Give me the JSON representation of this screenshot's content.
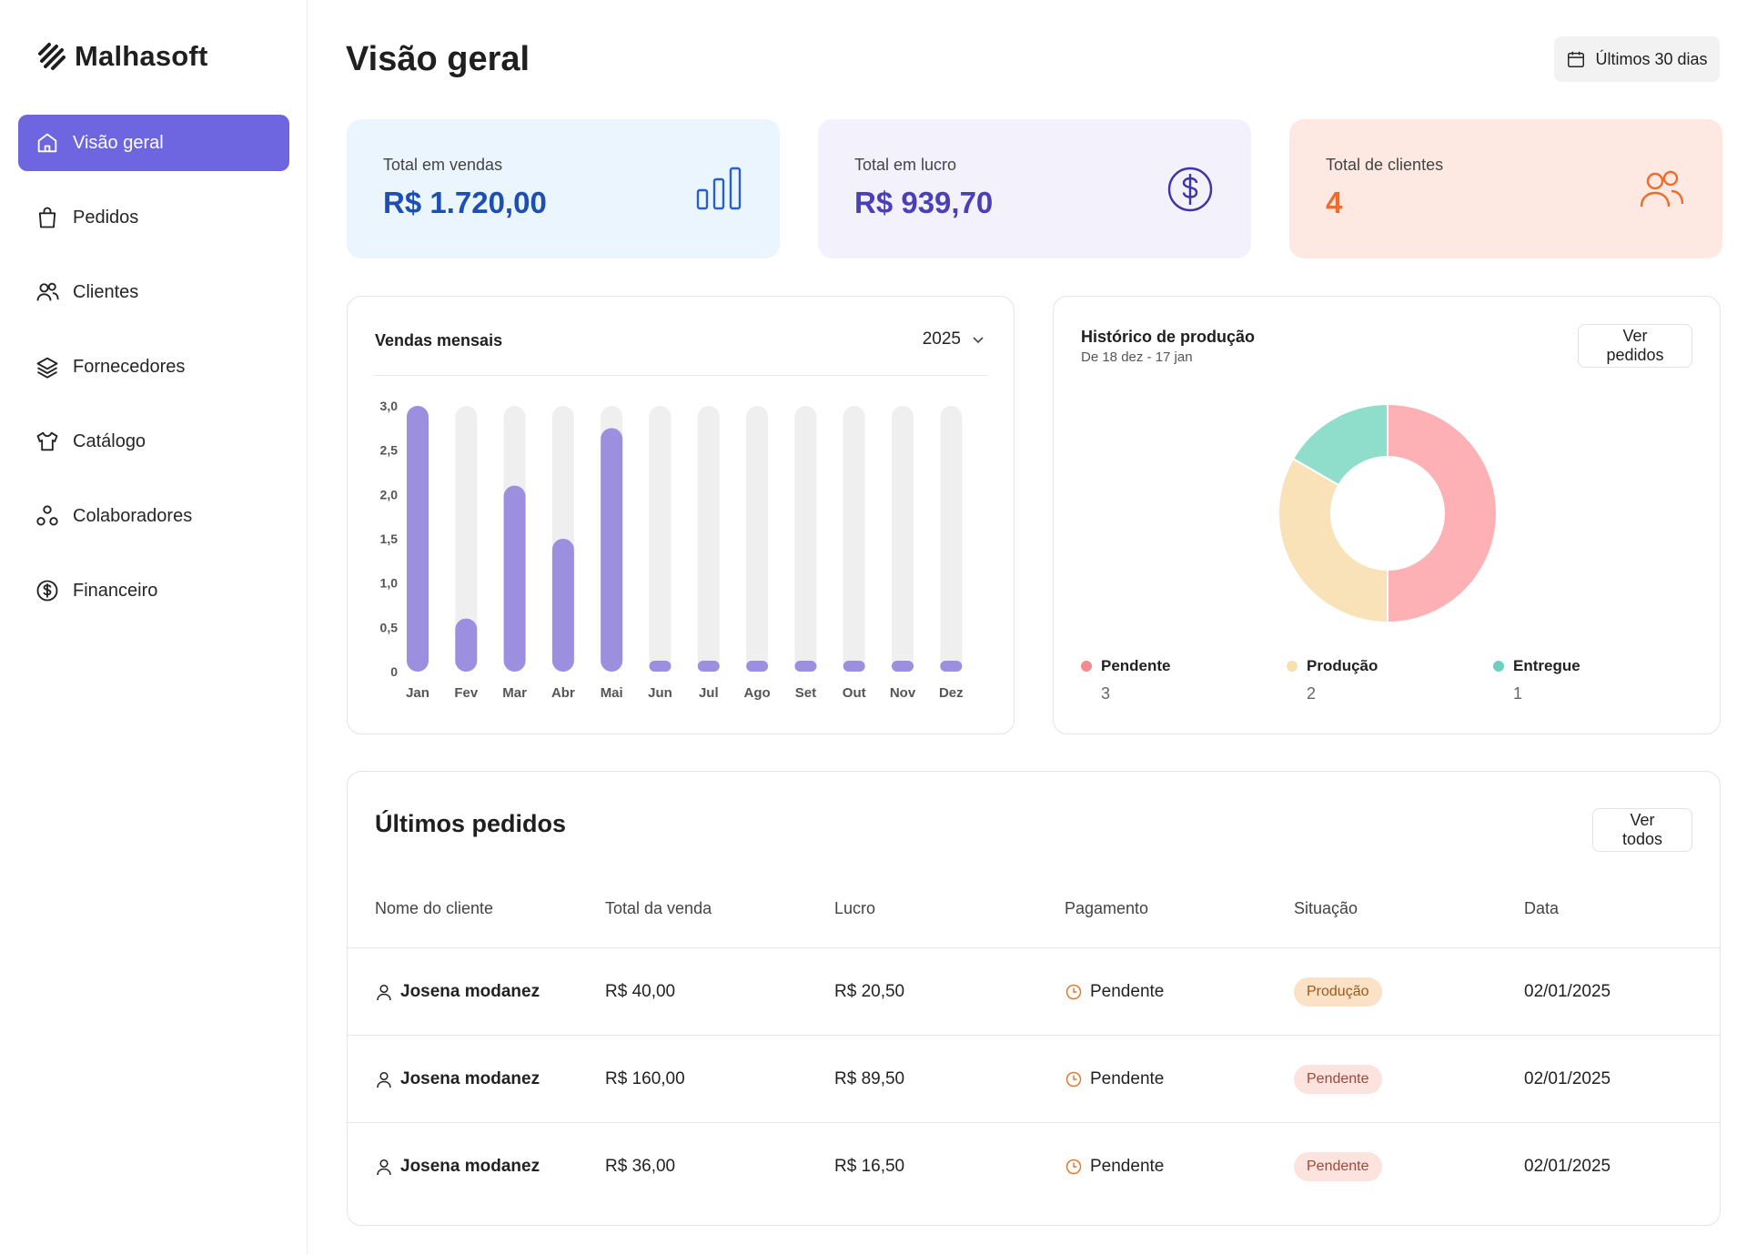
{
  "app": {
    "name": "Malhasoft"
  },
  "sidebar": {
    "items": [
      {
        "label": "Visão geral",
        "icon": "home-icon",
        "active": true
      },
      {
        "label": "Pedidos",
        "icon": "shopping-bag-icon"
      },
      {
        "label": "Clientes",
        "icon": "users-icon"
      },
      {
        "label": "Fornecedores",
        "icon": "layers-icon"
      },
      {
        "label": "Catálogo",
        "icon": "tshirt-icon"
      },
      {
        "label": "Colaboradores",
        "icon": "people-circles-icon"
      },
      {
        "label": "Financeiro",
        "icon": "dollar-circle-icon"
      }
    ]
  },
  "header": {
    "title": "Visão geral",
    "range_label": "Últimos 30 dias"
  },
  "stats": {
    "sales": {
      "label": "Total em vendas",
      "value": "R$ 1.720,00"
    },
    "profit": {
      "label": "Total em lucro",
      "value": "R$ 939,70"
    },
    "clients": {
      "label": "Total de clientes",
      "value": "4"
    }
  },
  "sales_panel": {
    "title": "Vendas mensais",
    "year": "2025"
  },
  "production_panel": {
    "title": "Histórico de produção",
    "subtitle": "De 18 dez - 17 jan",
    "button": "Ver pedidos",
    "legend": [
      {
        "label": "Pendente",
        "value": "3",
        "color": "#f28b92"
      },
      {
        "label": "Produção",
        "value": "2",
        "color": "#f8dfae"
      },
      {
        "label": "Entregue",
        "value": "1",
        "color": "#6ccfc0"
      }
    ]
  },
  "orders": {
    "title": "Últimos pedidos",
    "button": "Ver todos",
    "columns": [
      "Nome do cliente",
      "Total da venda",
      "Lucro",
      "Pagamento",
      "Situação",
      "Data"
    ],
    "rows": [
      {
        "name": "Josena modanez",
        "total": "R$ 40,00",
        "profit": "R$ 20,50",
        "payment": "Pendente",
        "status": "Produção",
        "status_type": "producao",
        "date": "02/01/2025"
      },
      {
        "name": "Josena modanez",
        "total": "R$ 160,00",
        "profit": "R$ 89,50",
        "payment": "Pendente",
        "status": "Pendente",
        "status_type": "pendente",
        "date": "02/01/2025"
      },
      {
        "name": "Josena modanez",
        "total": "R$ 36,00",
        "profit": "R$ 16,50",
        "payment": "Pendente",
        "status": "Pendente",
        "status_type": "pendente",
        "date": "02/01/2025"
      }
    ]
  },
  "chart_data": [
    {
      "type": "bar",
      "title": "Vendas mensais",
      "categories": [
        "Jan",
        "Fev",
        "Mar",
        "Abr",
        "Mai",
        "Jun",
        "Jul",
        "Ago",
        "Set",
        "Out",
        "Nov",
        "Dez"
      ],
      "values": [
        3.0,
        0.6,
        2.1,
        1.5,
        2.75,
        0,
        0,
        0,
        0,
        0,
        0,
        0
      ],
      "ylim": [
        0,
        3
      ],
      "yticks": [
        "0",
        "0,5",
        "1,0",
        "1,5",
        "2,0",
        "2,5",
        "3,0"
      ],
      "bar_color": "#9d8fe0",
      "track_color": "#efefef",
      "xlabel": "",
      "ylabel": ""
    },
    {
      "type": "pie",
      "title": "Histórico de produção",
      "labels": [
        "Pendente",
        "Produção",
        "Entregue"
      ],
      "values": [
        3,
        2,
        1
      ],
      "colors": [
        "#fdb1b4",
        "#f9e2b8",
        "#8fdecb"
      ]
    }
  ]
}
